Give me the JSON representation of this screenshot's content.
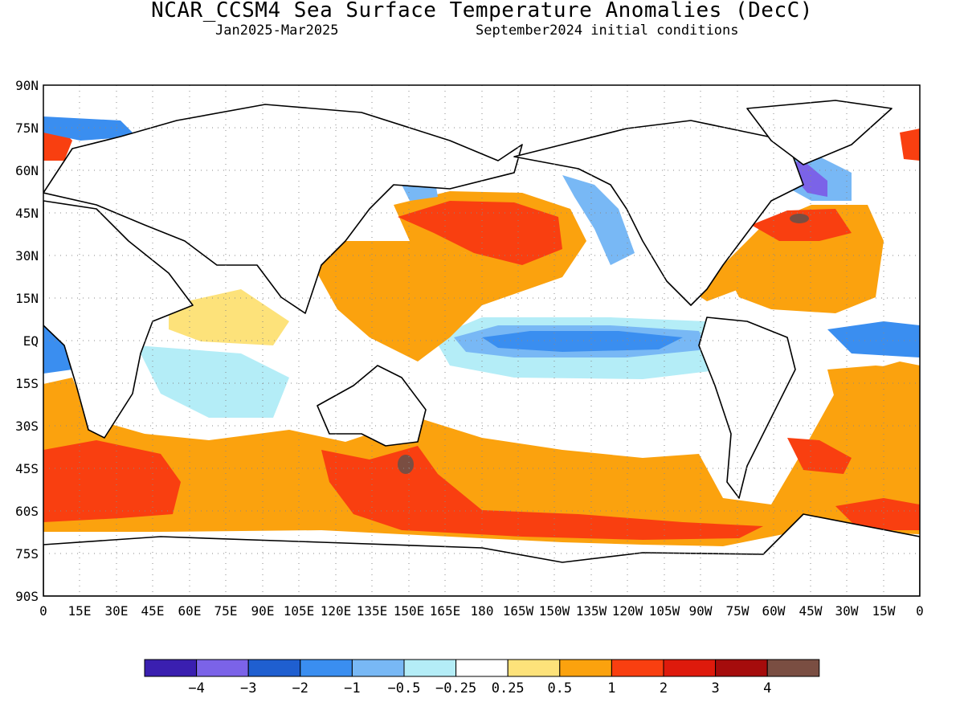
{
  "title": "NCAR_CCSM4 Sea Surface Temperature Anomalies (DecC)",
  "subtitle_left": "Jan2025-Mar2025",
  "subtitle_right": "September2024 initial conditions",
  "lat_labels": [
    "90N",
    "75N",
    "60N",
    "45N",
    "30N",
    "15N",
    "EQ",
    "15S",
    "30S",
    "45S",
    "60S",
    "75S",
    "90S"
  ],
  "lon_labels": [
    "0",
    "15E",
    "30E",
    "45E",
    "60E",
    "75E",
    "90E",
    "105E",
    "120E",
    "135E",
    "150E",
    "165E",
    "180",
    "165W",
    "150W",
    "135W",
    "120W",
    "105W",
    "90W",
    "75W",
    "60W",
    "45W",
    "30W",
    "15W",
    "0"
  ],
  "colorbar": {
    "colors": [
      "#3a1fb0",
      "#7b63e8",
      "#1f5fd0",
      "#3a8ef0",
      "#78b8f5",
      "#b4edf7",
      "#ffffff",
      "#fde27a",
      "#fba20e",
      "#f93f10",
      "#de1a0c",
      "#a50c0c",
      "#7a4e42"
    ],
    "labels": [
      "-4",
      "-3",
      "-2",
      "-1",
      "-0.5",
      "-0.25",
      "0.25",
      "0.5",
      "1",
      "2",
      "3",
      "4"
    ]
  },
  "colors": {
    "very_cold": "#3a1fb0",
    "cold": "#1f5fd0",
    "cool": "#78b8f5",
    "slightly_cool": "#b4edf7",
    "slightly_warm": "#fde27a",
    "warm": "#fba20e",
    "hot": "#f93f10",
    "very_hot": "#de1a0c",
    "extreme": "#a50c0c",
    "max": "#7a4e42"
  }
}
